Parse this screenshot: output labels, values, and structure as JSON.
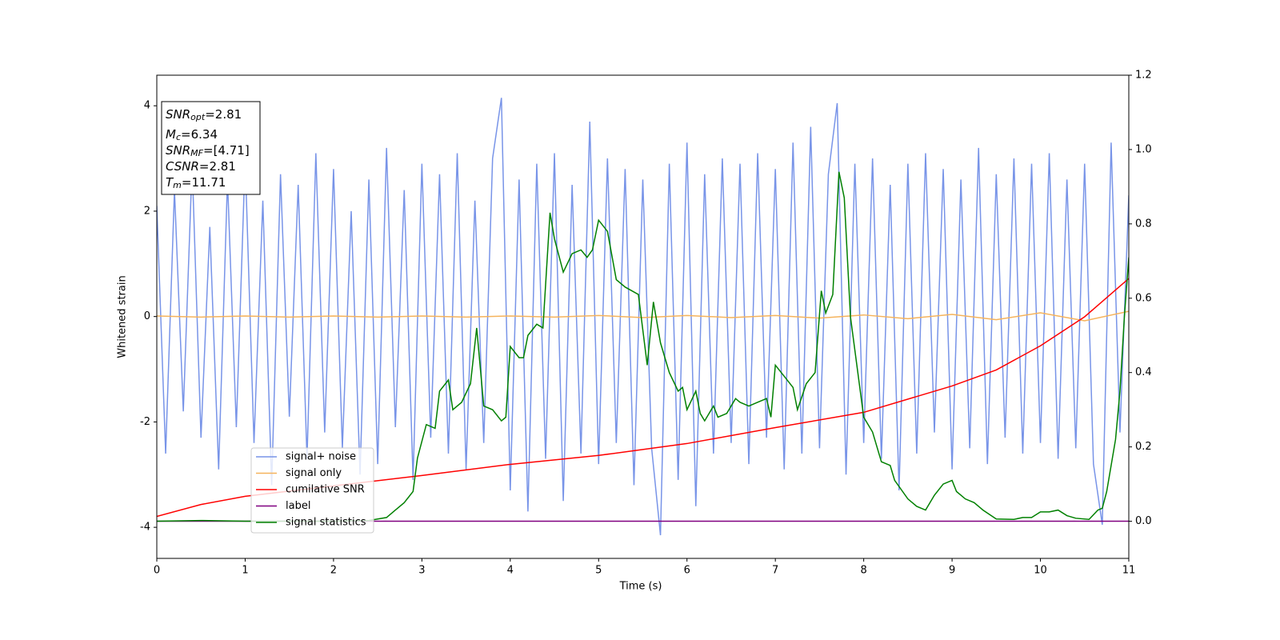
{
  "chart_data": {
    "type": "line",
    "xlabel": "Time (s)",
    "ylabel": "Whitened strain",
    "xlim": [
      0,
      11
    ],
    "ylim": [
      -4.59,
      4.58
    ],
    "y2lim": [
      -0.1,
      1.2
    ],
    "xticks": [
      0,
      1,
      2,
      3,
      4,
      5,
      6,
      7,
      8,
      9,
      10,
      11
    ],
    "yticks": [
      -4,
      -2,
      0,
      2,
      4
    ],
    "y2ticks": [
      {
        "value": 0.0,
        "label": "0.0"
      },
      {
        "value": 0.2,
        "label": "0.2"
      },
      {
        "value": 0.4,
        "label": "0.4"
      },
      {
        "value": 0.6,
        "label": "0.6"
      },
      {
        "value": 0.8,
        "label": "0.8"
      },
      {
        "value": 1.0,
        "label": "1.0"
      },
      {
        "value": 1.2,
        "label": "1.2"
      }
    ],
    "grid": false,
    "legend": "lower left",
    "annotation_lines": [
      [
        "SNR",
        "opt",
        "=2.81"
      ],
      [
        "M",
        "c",
        "=6.34"
      ],
      [
        "SNR",
        "MF",
        "=[4.71]"
      ],
      [
        "CSNR",
        "",
        "=2.81"
      ],
      [
        "T",
        "m",
        "=11.71"
      ]
    ],
    "series": [
      {
        "name": "signal+ noise",
        "color": "#7894e8",
        "axis": "y",
        "x": [
          0,
          0.1,
          0.2,
          0.3,
          0.4,
          0.5,
          0.6,
          0.7,
          0.8,
          0.9,
          1,
          1.1,
          1.2,
          1.3,
          1.4,
          1.5,
          1.6,
          1.7,
          1.8,
          1.9,
          2,
          2.1,
          2.2,
          2.3,
          2.4,
          2.5,
          2.6,
          2.7,
          2.8,
          2.9,
          3,
          3.1,
          3.2,
          3.3,
          3.4,
          3.5,
          3.6,
          3.7,
          3.8,
          3.9,
          4,
          4.1,
          4.2,
          4.3,
          4.4,
          4.5,
          4.6,
          4.7,
          4.8,
          4.9,
          5,
          5.1,
          5.2,
          5.3,
          5.4,
          5.5,
          5.6,
          5.7,
          5.8,
          5.9,
          6,
          6.1,
          6.2,
          6.3,
          6.4,
          6.5,
          6.6,
          6.7,
          6.8,
          6.9,
          7,
          7.1,
          7.2,
          7.3,
          7.4,
          7.5,
          7.6,
          7.7,
          7.8,
          7.9,
          8,
          8.1,
          8.2,
          8.3,
          8.4,
          8.5,
          8.6,
          8.7,
          8.8,
          8.9,
          9,
          9.1,
          9.2,
          9.3,
          9.4,
          9.5,
          9.6,
          9.7,
          9.8,
          9.9,
          10,
          10.1,
          10.2,
          10.3,
          10.4,
          10.5,
          10.6,
          10.7,
          10.8,
          10.9,
          11
        ],
        "values": [
          2.1,
          -2.6,
          2.4,
          -1.8,
          2.9,
          -2.3,
          1.7,
          -2.9,
          2.6,
          -2.1,
          3.0,
          -2.4,
          2.2,
          -3.2,
          2.7,
          -1.9,
          2.5,
          -2.7,
          3.1,
          -2.2,
          2.8,
          -2.5,
          2.0,
          -3.0,
          2.6,
          -2.8,
          3.2,
          -2.1,
          2.4,
          -3.1,
          2.9,
          -2.3,
          2.7,
          -2.6,
          3.1,
          -2.9,
          2.2,
          -2.4,
          3.0,
          4.15,
          -3.3,
          2.6,
          -3.7,
          2.9,
          -2.7,
          3.1,
          -3.5,
          2.5,
          -2.6,
          3.7,
          -2.8,
          3.0,
          -2.4,
          2.8,
          -3.2,
          2.6,
          -2.5,
          -4.15,
          2.9,
          -3.1,
          3.3,
          -3.6,
          2.7,
          -2.6,
          3.0,
          -2.4,
          2.9,
          -2.8,
          3.1,
          -2.3,
          2.8,
          -2.9,
          3.3,
          -2.6,
          3.6,
          -2.5,
          2.7,
          4.05,
          -3.0,
          2.9,
          -2.4,
          3.0,
          -2.7,
          2.5,
          -3.3,
          2.9,
          -2.6,
          3.1,
          -2.2,
          2.8,
          -2.9,
          2.6,
          -2.5,
          3.2,
          -2.8,
          2.7,
          -2.3,
          3.0,
          -2.6,
          2.9,
          -2.4,
          3.1,
          -2.7,
          2.6,
          -2.5,
          2.9,
          -2.8,
          -3.95,
          3.3,
          -2.2,
          2.3
        ]
      },
      {
        "name": "signal only",
        "color": "#f5b35c",
        "axis": "y",
        "x": [
          0,
          0.5,
          1,
          1.5,
          2,
          2.5,
          3,
          3.5,
          4,
          4.5,
          5,
          5.5,
          6,
          6.5,
          7,
          7.5,
          8,
          8.5,
          9,
          9.5,
          10,
          10.5,
          11
        ],
        "values": [
          0.01,
          -0.01,
          0.01,
          -0.01,
          0.01,
          -0.01,
          0.01,
          -0.01,
          0.01,
          -0.01,
          0.02,
          -0.02,
          0.02,
          -0.02,
          0.02,
          -0.03,
          0.03,
          -0.04,
          0.04,
          -0.06,
          0.07,
          -0.08,
          0.1
        ]
      },
      {
        "name": "cumilative SNR",
        "color": "#ff0000",
        "axis": "y2",
        "x": [
          0,
          0.5,
          1,
          2,
          3,
          4,
          5,
          6,
          7,
          8,
          9,
          9.5,
          10,
          10.5,
          11
        ],
        "values": [
          0.013,
          0.045,
          0.067,
          0.095,
          0.123,
          0.153,
          0.177,
          0.209,
          0.252,
          0.293,
          0.364,
          0.407,
          0.472,
          0.55,
          0.653
        ]
      },
      {
        "name": "label",
        "color": "#800080",
        "axis": "y2",
        "x": [
          0,
          11
        ],
        "values": [
          0,
          0
        ]
      },
      {
        "name": "signal statistics",
        "color": "#008000",
        "axis": "y2",
        "x": [
          0,
          0.5,
          1,
          2,
          2.4,
          2.6,
          2.7,
          2.8,
          2.9,
          2.95,
          3.05,
          3.15,
          3.2,
          3.3,
          3.35,
          3.45,
          3.55,
          3.62,
          3.7,
          3.8,
          3.9,
          3.95,
          4.0,
          4.1,
          4.15,
          4.2,
          4.3,
          4.37,
          4.45,
          4.5,
          4.6,
          4.7,
          4.8,
          4.87,
          4.93,
          5.0,
          5.1,
          5.2,
          5.3,
          5.45,
          5.55,
          5.62,
          5.7,
          5.8,
          5.9,
          5.95,
          6.0,
          6.1,
          6.15,
          6.2,
          6.3,
          6.35,
          6.45,
          6.55,
          6.6,
          6.7,
          6.8,
          6.9,
          6.95,
          7.0,
          7.1,
          7.2,
          7.25,
          7.35,
          7.45,
          7.52,
          7.57,
          7.65,
          7.72,
          7.78,
          7.85,
          8.0,
          8.1,
          8.2,
          8.3,
          8.35,
          8.5,
          8.6,
          8.7,
          8.8,
          8.9,
          9.0,
          9.05,
          9.15,
          9.25,
          9.35,
          9.5,
          9.7,
          9.8,
          9.9,
          10.0,
          10.1,
          10.2,
          10.3,
          10.4,
          10.55,
          10.65,
          10.7,
          10.75,
          10.8,
          10.85,
          10.9,
          10.95,
          11.0
        ],
        "values": [
          0.0,
          0.002,
          0.0,
          0.0,
          0.002,
          0.01,
          0.03,
          0.05,
          0.08,
          0.17,
          0.26,
          0.25,
          0.35,
          0.38,
          0.3,
          0.32,
          0.37,
          0.52,
          0.31,
          0.3,
          0.27,
          0.28,
          0.47,
          0.44,
          0.44,
          0.5,
          0.53,
          0.52,
          0.83,
          0.76,
          0.67,
          0.72,
          0.73,
          0.71,
          0.73,
          0.81,
          0.78,
          0.65,
          0.63,
          0.61,
          0.42,
          0.59,
          0.48,
          0.4,
          0.35,
          0.36,
          0.3,
          0.35,
          0.29,
          0.27,
          0.31,
          0.28,
          0.29,
          0.33,
          0.32,
          0.31,
          0.32,
          0.33,
          0.28,
          0.42,
          0.39,
          0.36,
          0.3,
          0.37,
          0.4,
          0.62,
          0.56,
          0.61,
          0.94,
          0.87,
          0.55,
          0.28,
          0.24,
          0.16,
          0.15,
          0.11,
          0.06,
          0.04,
          0.03,
          0.07,
          0.1,
          0.11,
          0.08,
          0.06,
          0.05,
          0.03,
          0.006,
          0.005,
          0.01,
          0.01,
          0.025,
          0.025,
          0.03,
          0.015,
          0.008,
          0.005,
          0.03,
          0.035,
          0.08,
          0.15,
          0.22,
          0.35,
          0.55,
          0.71
        ]
      }
    ]
  }
}
